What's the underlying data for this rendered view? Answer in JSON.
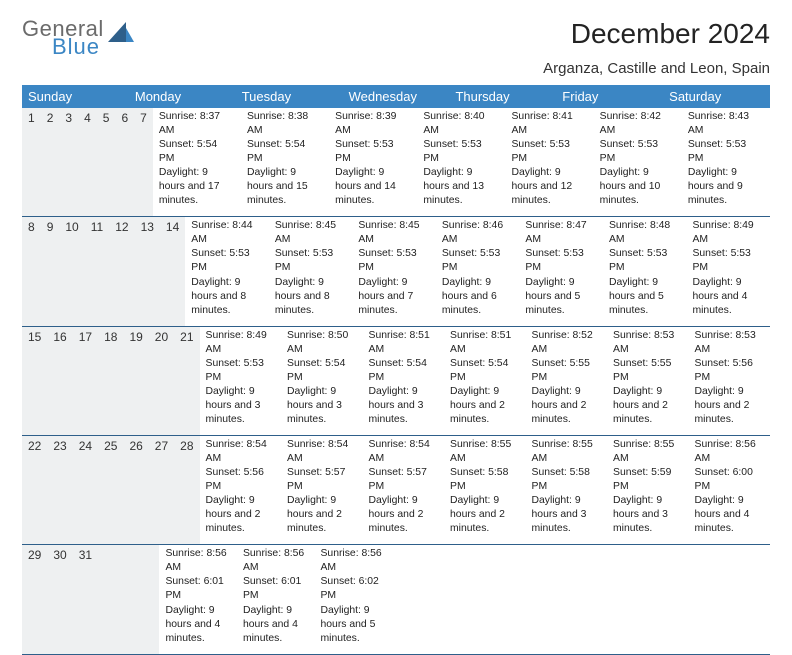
{
  "logo": {
    "general": "General",
    "blue": "Blue"
  },
  "title": "December 2024",
  "location": "Arganza, Castille and Leon, Spain",
  "colors": {
    "header_bg": "#3b86c4",
    "header_text": "#ffffff",
    "daynum_bg": "#eef0f1",
    "rule": "#2e5f8a",
    "logo_gray": "#6b6b6b",
    "logo_blue": "#3b86c4"
  },
  "day_names": [
    "Sunday",
    "Monday",
    "Tuesday",
    "Wednesday",
    "Thursday",
    "Friday",
    "Saturday"
  ],
  "weeks": [
    [
      {
        "n": "1",
        "sr": "Sunrise: 8:37 AM",
        "ss": "Sunset: 5:54 PM",
        "dl": "Daylight: 9 hours and 17 minutes."
      },
      {
        "n": "2",
        "sr": "Sunrise: 8:38 AM",
        "ss": "Sunset: 5:54 PM",
        "dl": "Daylight: 9 hours and 15 minutes."
      },
      {
        "n": "3",
        "sr": "Sunrise: 8:39 AM",
        "ss": "Sunset: 5:53 PM",
        "dl": "Daylight: 9 hours and 14 minutes."
      },
      {
        "n": "4",
        "sr": "Sunrise: 8:40 AM",
        "ss": "Sunset: 5:53 PM",
        "dl": "Daylight: 9 hours and 13 minutes."
      },
      {
        "n": "5",
        "sr": "Sunrise: 8:41 AM",
        "ss": "Sunset: 5:53 PM",
        "dl": "Daylight: 9 hours and 12 minutes."
      },
      {
        "n": "6",
        "sr": "Sunrise: 8:42 AM",
        "ss": "Sunset: 5:53 PM",
        "dl": "Daylight: 9 hours and 10 minutes."
      },
      {
        "n": "7",
        "sr": "Sunrise: 8:43 AM",
        "ss": "Sunset: 5:53 PM",
        "dl": "Daylight: 9 hours and 9 minutes."
      }
    ],
    [
      {
        "n": "8",
        "sr": "Sunrise: 8:44 AM",
        "ss": "Sunset: 5:53 PM",
        "dl": "Daylight: 9 hours and 8 minutes."
      },
      {
        "n": "9",
        "sr": "Sunrise: 8:45 AM",
        "ss": "Sunset: 5:53 PM",
        "dl": "Daylight: 9 hours and 8 minutes."
      },
      {
        "n": "10",
        "sr": "Sunrise: 8:45 AM",
        "ss": "Sunset: 5:53 PM",
        "dl": "Daylight: 9 hours and 7 minutes."
      },
      {
        "n": "11",
        "sr": "Sunrise: 8:46 AM",
        "ss": "Sunset: 5:53 PM",
        "dl": "Daylight: 9 hours and 6 minutes."
      },
      {
        "n": "12",
        "sr": "Sunrise: 8:47 AM",
        "ss": "Sunset: 5:53 PM",
        "dl": "Daylight: 9 hours and 5 minutes."
      },
      {
        "n": "13",
        "sr": "Sunrise: 8:48 AM",
        "ss": "Sunset: 5:53 PM",
        "dl": "Daylight: 9 hours and 5 minutes."
      },
      {
        "n": "14",
        "sr": "Sunrise: 8:49 AM",
        "ss": "Sunset: 5:53 PM",
        "dl": "Daylight: 9 hours and 4 minutes."
      }
    ],
    [
      {
        "n": "15",
        "sr": "Sunrise: 8:49 AM",
        "ss": "Sunset: 5:53 PM",
        "dl": "Daylight: 9 hours and 3 minutes."
      },
      {
        "n": "16",
        "sr": "Sunrise: 8:50 AM",
        "ss": "Sunset: 5:54 PM",
        "dl": "Daylight: 9 hours and 3 minutes."
      },
      {
        "n": "17",
        "sr": "Sunrise: 8:51 AM",
        "ss": "Sunset: 5:54 PM",
        "dl": "Daylight: 9 hours and 3 minutes."
      },
      {
        "n": "18",
        "sr": "Sunrise: 8:51 AM",
        "ss": "Sunset: 5:54 PM",
        "dl": "Daylight: 9 hours and 2 minutes."
      },
      {
        "n": "19",
        "sr": "Sunrise: 8:52 AM",
        "ss": "Sunset: 5:55 PM",
        "dl": "Daylight: 9 hours and 2 minutes."
      },
      {
        "n": "20",
        "sr": "Sunrise: 8:53 AM",
        "ss": "Sunset: 5:55 PM",
        "dl": "Daylight: 9 hours and 2 minutes."
      },
      {
        "n": "21",
        "sr": "Sunrise: 8:53 AM",
        "ss": "Sunset: 5:56 PM",
        "dl": "Daylight: 9 hours and 2 minutes."
      }
    ],
    [
      {
        "n": "22",
        "sr": "Sunrise: 8:54 AM",
        "ss": "Sunset: 5:56 PM",
        "dl": "Daylight: 9 hours and 2 minutes."
      },
      {
        "n": "23",
        "sr": "Sunrise: 8:54 AM",
        "ss": "Sunset: 5:57 PM",
        "dl": "Daylight: 9 hours and 2 minutes."
      },
      {
        "n": "24",
        "sr": "Sunrise: 8:54 AM",
        "ss": "Sunset: 5:57 PM",
        "dl": "Daylight: 9 hours and 2 minutes."
      },
      {
        "n": "25",
        "sr": "Sunrise: 8:55 AM",
        "ss": "Sunset: 5:58 PM",
        "dl": "Daylight: 9 hours and 2 minutes."
      },
      {
        "n": "26",
        "sr": "Sunrise: 8:55 AM",
        "ss": "Sunset: 5:58 PM",
        "dl": "Daylight: 9 hours and 3 minutes."
      },
      {
        "n": "27",
        "sr": "Sunrise: 8:55 AM",
        "ss": "Sunset: 5:59 PM",
        "dl": "Daylight: 9 hours and 3 minutes."
      },
      {
        "n": "28",
        "sr": "Sunrise: 8:56 AM",
        "ss": "Sunset: 6:00 PM",
        "dl": "Daylight: 9 hours and 4 minutes."
      }
    ],
    [
      {
        "n": "29",
        "sr": "Sunrise: 8:56 AM",
        "ss": "Sunset: 6:01 PM",
        "dl": "Daylight: 9 hours and 4 minutes."
      },
      {
        "n": "30",
        "sr": "Sunrise: 8:56 AM",
        "ss": "Sunset: 6:01 PM",
        "dl": "Daylight: 9 hours and 4 minutes."
      },
      {
        "n": "31",
        "sr": "Sunrise: 8:56 AM",
        "ss": "Sunset: 6:02 PM",
        "dl": "Daylight: 9 hours and 5 minutes."
      },
      {
        "n": "",
        "sr": "",
        "ss": "",
        "dl": ""
      },
      {
        "n": "",
        "sr": "",
        "ss": "",
        "dl": ""
      },
      {
        "n": "",
        "sr": "",
        "ss": "",
        "dl": ""
      },
      {
        "n": "",
        "sr": "",
        "ss": "",
        "dl": ""
      }
    ]
  ]
}
